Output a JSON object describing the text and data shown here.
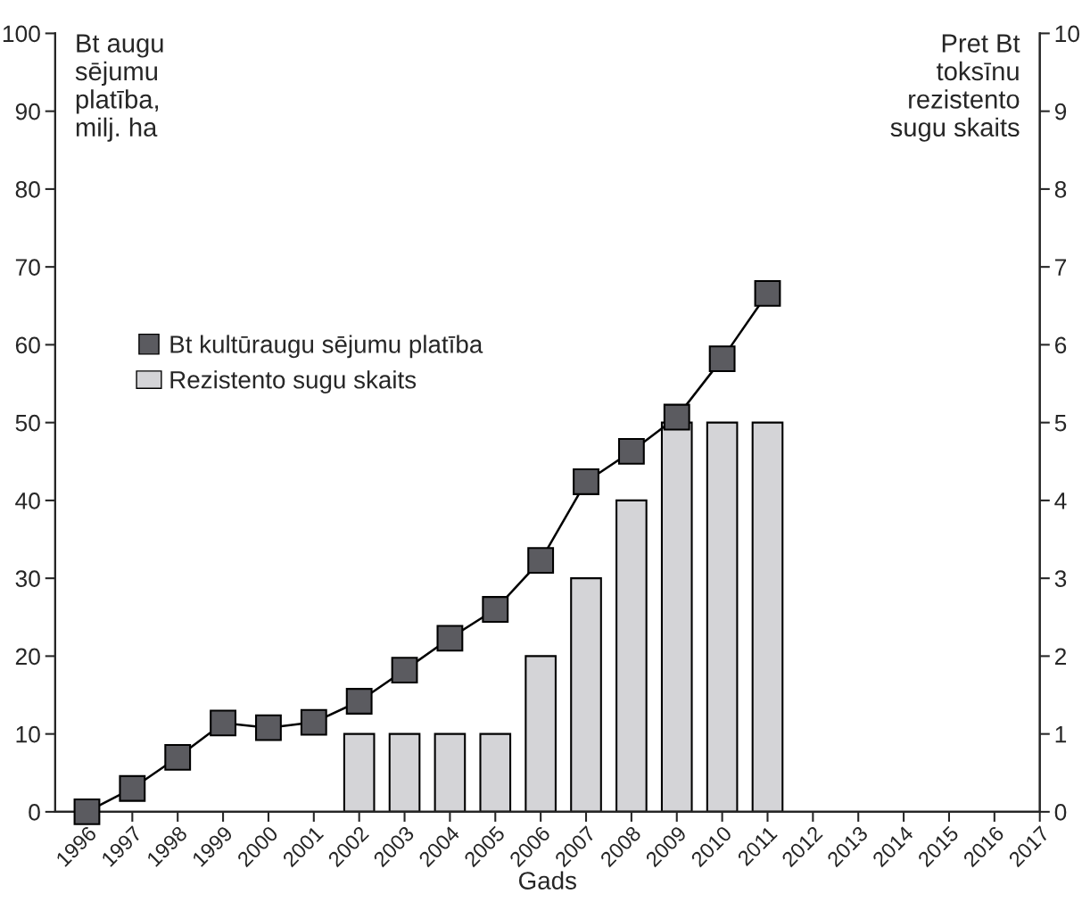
{
  "chart_data": {
    "type": "bar",
    "xlabel": "Gads",
    "ylabel": "Bt augu\nsējumu\nplatība,\nmilj. ha",
    "y2label": "Pret Bt\ntoksīnu\nrezistento\nsugu skaits",
    "categories": [
      "1996",
      "1997",
      "1998",
      "1999",
      "2000",
      "2001",
      "2002",
      "2003",
      "2004",
      "2005",
      "2006",
      "2007",
      "2008",
      "2009",
      "2010",
      "2011",
      "2012",
      "2013",
      "2014",
      "2015",
      "2016",
      "2017"
    ],
    "series": [
      {
        "name": "Bt kultūraugu sējumu platība",
        "type": "line",
        "color": "#5b5b60",
        "values": [
          0,
          3,
          7,
          11.4,
          10.8,
          11.5,
          14.2,
          18.2,
          22.3,
          26.0,
          32.3,
          42.4,
          46.3,
          50.7,
          58.2,
          66.6,
          null,
          null,
          null,
          null,
          null,
          null
        ]
      },
      {
        "name": "Rezistento sugu skaits",
        "axis": "y2",
        "color": "#d4d4d7",
        "values": [
          null,
          null,
          null,
          null,
          null,
          null,
          1,
          1,
          1,
          1,
          2,
          3,
          4,
          5,
          5,
          5,
          null,
          null,
          null,
          null,
          null,
          null
        ]
      }
    ],
    "ylim": [
      0,
      100
    ],
    "yticks": [
      0,
      10,
      20,
      30,
      40,
      50,
      60,
      70,
      80,
      90,
      100
    ],
    "y2lim": [
      0,
      10
    ],
    "y2ticks": [
      0,
      1,
      2,
      3,
      4,
      5,
      6,
      7,
      8,
      9,
      10
    ],
    "marker": "square",
    "grid": false,
    "legend": "center left"
  }
}
